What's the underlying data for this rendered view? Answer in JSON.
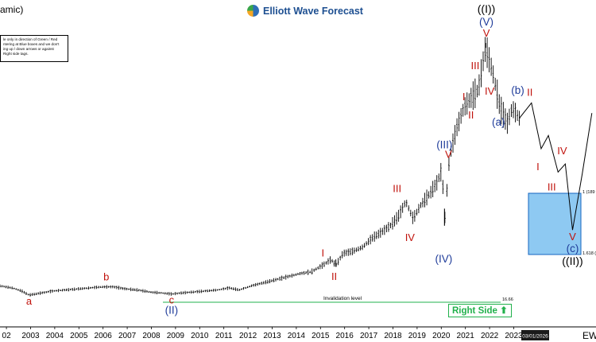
{
  "header": {
    "title_fragment": "amic)",
    "logo_text": "Elliott Wave Forecast",
    "note_lines": [
      "le only in direction of Green / Red",
      "ntering at Blue boxes and we don't",
      "ing up / down arrows or against",
      "Right side tags."
    ],
    "right_side_tag": "Right Side",
    "right_side_arrow": "arrow-up-icon",
    "corner_text": "EW"
  },
  "chart_data": {
    "type": "line",
    "x_tick_labels": [
      "02",
      "2003",
      "2004",
      "2005",
      "2006",
      "2007",
      "2008",
      "2009",
      "2010",
      "2011",
      "2012",
      "2013",
      "2014",
      "2015",
      "2016",
      "2017",
      "2018",
      "2019",
      "2020",
      "2021",
      "2022",
      "2023"
    ],
    "date_label": "03/01/2026",
    "series": [
      {
        "x": [
          2001.8,
          2002.3,
          2002.7,
          2003.0,
          2003.5,
          2004.0,
          2004.5,
          2005.0,
          2005.5,
          2006.0,
          2006.5,
          2007.0,
          2007.5,
          2008.0,
          2008.5,
          2008.9,
          2009.3,
          2009.8,
          2010.3,
          2010.8,
          2011.3,
          2011.7,
          2012.2,
          2012.7,
          2013.2,
          2013.7,
          2014.2,
          2014.7,
          2015.2,
          2015.5,
          2015.7,
          2016.0,
          2016.4,
          2016.8,
          2017.2,
          2017.6,
          2018.0,
          2018.3,
          2018.6,
          2018.9,
          2019.2,
          2019.6,
          2019.9,
          2020.1,
          2020.2,
          2020.4,
          2020.7,
          2021.0,
          2021.3,
          2021.6,
          2021.9,
          2022.2,
          2022.5,
          2022.8,
          2023.0,
          2023.3
        ],
        "y": [
          30,
          28,
          25,
          21,
          23,
          25,
          26,
          27,
          28,
          29,
          29,
          27,
          26,
          24,
          23,
          22,
          23,
          24,
          25,
          26,
          28,
          26,
          30,
          33,
          36,
          39,
          42,
          44,
          51,
          56,
          50,
          62,
          64,
          68,
          77,
          83,
          90,
          99,
          113,
          96,
          109,
          121,
          132,
          145,
          92,
          156,
          185,
          205,
          215,
          223,
          265,
          240,
          205,
          190,
          205,
          195
        ]
      },
      {
        "x": [
          2023.3,
          2023.8,
          2024.2,
          2024.5,
          2024.9,
          2025.2,
          2025.5,
          2025.9,
          2026.3
        ],
        "y": [
          195,
          210,
          165,
          178,
          142,
          150,
          85,
          140,
          200
        ]
      }
    ],
    "labels": [
      {
        "text": "a",
        "x": 2003.0,
        "y": 21
      },
      {
        "text": "b",
        "x": 2006.2,
        "y": 29
      },
      {
        "text": "c",
        "x": 2008.9,
        "y": 22
      },
      {
        "text": "(II)",
        "x": 2008.9,
        "y": 22
      },
      {
        "text": "I",
        "x": 2015.2,
        "y": 51
      },
      {
        "text": "II",
        "x": 2015.7,
        "y": 50
      },
      {
        "text": "III",
        "x": 2018.6,
        "y": 113
      },
      {
        "text": "IV",
        "x": 2018.9,
        "y": 96
      },
      {
        "text": "V",
        "x": 2020.1,
        "y": 145
      },
      {
        "text": "(III)",
        "x": 2020.1,
        "y": 145
      },
      {
        "text": "(IV)",
        "x": 2020.2,
        "y": 92
      },
      {
        "text": "I",
        "x": 2021.0,
        "y": 205
      },
      {
        "text": "II",
        "x": 2021.3,
        "y": 215
      },
      {
        "text": "III",
        "x": 2021.6,
        "y": 223
      },
      {
        "text": "IV",
        "x": 2022.2,
        "y": 240
      },
      {
        "text": "V",
        "x": 2021.9,
        "y": 265
      },
      {
        "text": "(V)",
        "x": 2021.9,
        "y": 265
      },
      {
        "text": "((I))",
        "x": 2021.9,
        "y": 265
      },
      {
        "text": "(a)",
        "x": 2022.5,
        "y": 205
      },
      {
        "text": "(b)",
        "x": 2023.0,
        "y": 205
      },
      {
        "text": "I",
        "x": 2024.2,
        "y": 165
      },
      {
        "text": "II",
        "x": 2023.8,
        "y": 210
      },
      {
        "text": "III",
        "x": 2024.9,
        "y": 142
      },
      {
        "text": "IV",
        "x": 2025.2,
        "y": 150
      },
      {
        "text": "V",
        "x": 2025.5,
        "y": 85
      },
      {
        "text": "(c)",
        "x": 2025.5,
        "y": 85
      },
      {
        "text": "((II))",
        "x": 2025.5,
        "y": 85
      }
    ],
    "invalidation": {
      "label": "Invalidation level",
      "value_label": "16.66"
    },
    "blue_box": {
      "top_label": "1 (189",
      "bottom_label": "1.618 ("
    },
    "colors": {
      "bars": "#000000",
      "red_label": "#c0120c",
      "blue_label": "#1f3c9a",
      "invalidation": "#22b14c",
      "box_fill": "#8ec9f2",
      "box_edge": "#1565c0"
    }
  }
}
